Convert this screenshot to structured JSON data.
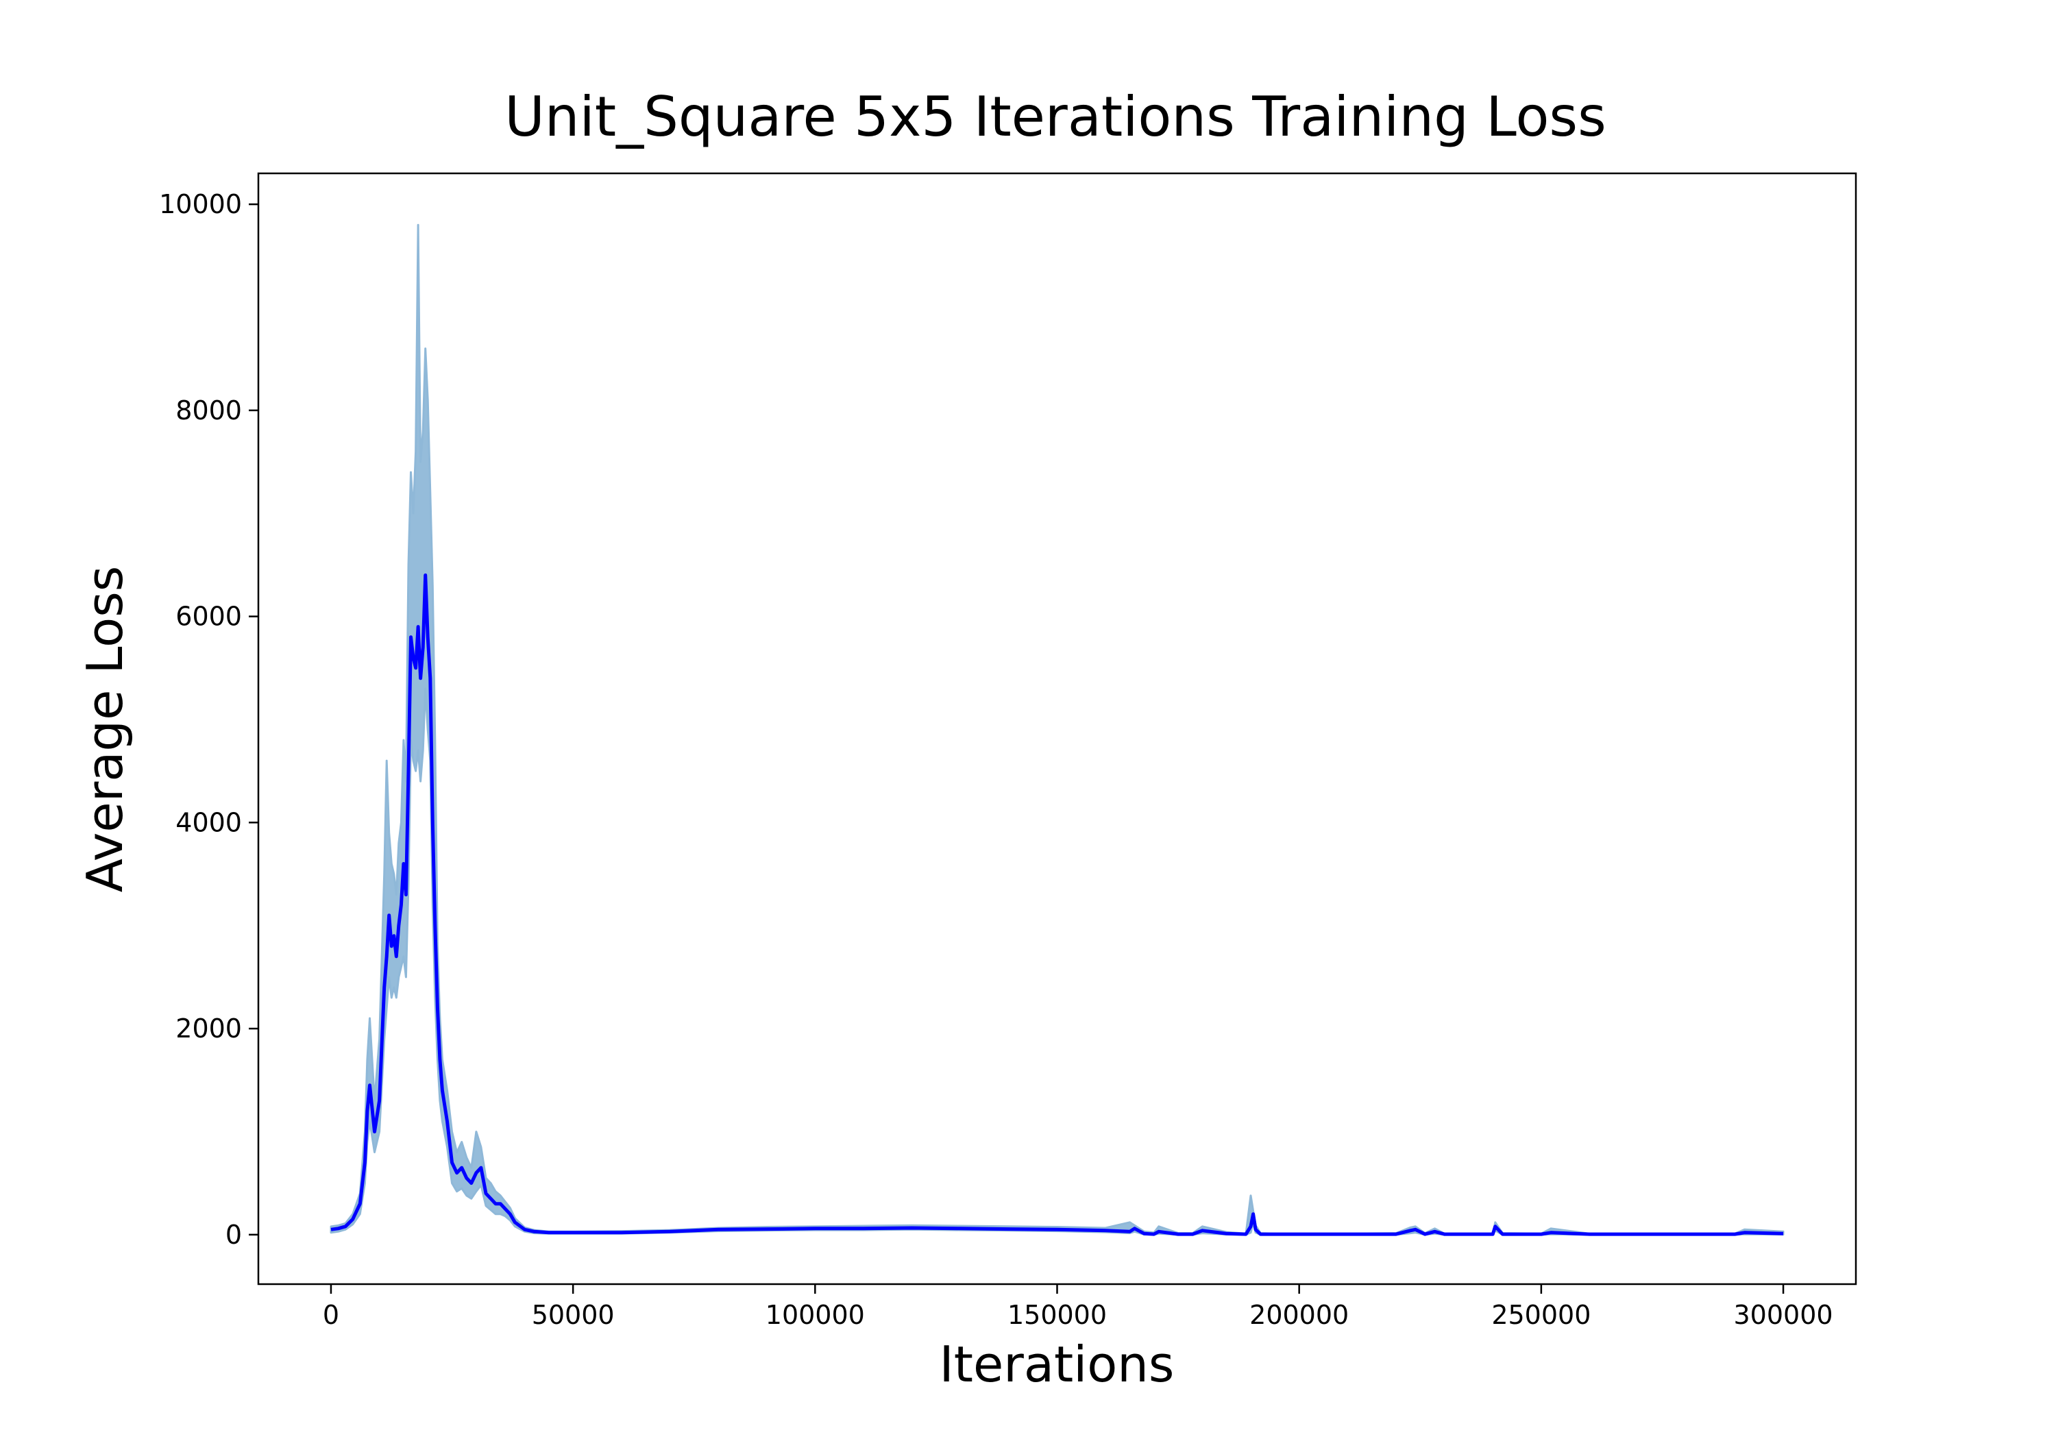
{
  "chart_data": {
    "type": "line",
    "title": "Unit_Square 5x5 Iterations Training Loss",
    "xlabel": "Iterations",
    "ylabel": "Average Loss",
    "xlim": [
      -15000,
      315000
    ],
    "ylim": [
      -480,
      10300
    ],
    "xticks": [
      0,
      50000,
      100000,
      150000,
      200000,
      250000,
      300000
    ],
    "xtick_labels": [
      "0",
      "50000",
      "100000",
      "150000",
      "200000",
      "250000",
      "300000"
    ],
    "yticks": [
      0,
      2000,
      4000,
      6000,
      8000,
      10000
    ],
    "ytick_labels": [
      "0",
      "2000",
      "4000",
      "6000",
      "8000",
      "10000"
    ],
    "grid": false,
    "colors": {
      "mean_line": "#0000ff",
      "band": "#8fb8d8",
      "axes": "#000000"
    },
    "series": [
      {
        "x": [
          0,
          1500,
          3000,
          4500,
          6000,
          7000,
          7500,
          8000,
          9000,
          10000,
          11000,
          11500,
          12000,
          12500,
          13000,
          13500,
          14000,
          14500,
          15000,
          15500,
          16000,
          16500,
          17000,
          17500,
          18000,
          18500,
          19000,
          19500,
          20000,
          20500,
          21000,
          21500,
          22000,
          22500,
          23000,
          24000,
          25000,
          26000,
          27000,
          28000,
          29000,
          30000,
          31000,
          32000,
          33000,
          34000,
          35000,
          36000,
          37000,
          38000,
          40000,
          42000,
          45000,
          50000,
          60000,
          70000,
          80000,
          90000,
          100000,
          110000,
          120000,
          130000,
          140000,
          150000,
          160000,
          165000,
          166000,
          168000,
          170000,
          171000,
          175000,
          178000,
          180000,
          185000,
          189000,
          190000,
          190500,
          191000,
          192000,
          195000,
          200000,
          210000,
          220000,
          223000,
          224000,
          226000,
          228000,
          230000,
          240000,
          240500,
          242000,
          250000,
          252000,
          260000,
          270000,
          280000,
          290000,
          292000,
          300000
        ],
        "values": [
          50,
          60,
          80,
          150,
          300,
          700,
          1200,
          1450,
          1000,
          1300,
          2400,
          2700,
          3100,
          2800,
          2900,
          2700,
          3000,
          3200,
          3600,
          3300,
          4500,
          5800,
          5600,
          5500,
          5900,
          5400,
          5700,
          6400,
          5800,
          5400,
          4000,
          3000,
          2200,
          1700,
          1400,
          1100,
          700,
          600,
          650,
          550,
          500,
          600,
          650,
          400,
          350,
          300,
          300,
          250,
          200,
          120,
          50,
          30,
          20,
          20,
          20,
          30,
          50,
          55,
          60,
          60,
          65,
          60,
          55,
          50,
          40,
          30,
          60,
          10,
          5,
          30,
          5,
          5,
          40,
          10,
          5,
          80,
          200,
          50,
          5,
          5,
          5,
          5,
          5,
          40,
          50,
          5,
          30,
          5,
          5,
          80,
          5,
          5,
          20,
          5,
          5,
          5,
          5,
          20,
          10
        ],
        "band_upper": [
          80,
          90,
          110,
          200,
          400,
          1000,
          1700,
          2100,
          1300,
          1900,
          3500,
          4600,
          3900,
          3600,
          3500,
          3300,
          3800,
          4000,
          4800,
          4400,
          6500,
          7400,
          7000,
          7600,
          9800,
          7500,
          7800,
          8600,
          8100,
          7200,
          6300,
          4800,
          2800,
          2100,
          1700,
          1400,
          1000,
          800,
          900,
          750,
          650,
          1000,
          850,
          550,
          500,
          420,
          380,
          320,
          260,
          160,
          70,
          45,
          30,
          30,
          35,
          45,
          65,
          75,
          80,
          85,
          90,
          85,
          80,
          75,
          65,
          120,
          90,
          30,
          20,
          80,
          15,
          15,
          80,
          25,
          10,
          380,
          230,
          90,
          15,
          10,
          10,
          10,
          15,
          70,
          80,
          15,
          60,
          10,
          10,
          120,
          15,
          10,
          60,
          10,
          10,
          10,
          10,
          50,
          30
        ],
        "band_lower": [
          20,
          30,
          50,
          100,
          200,
          500,
          900,
          1100,
          800,
          1000,
          1900,
          2200,
          2500,
          2300,
          2400,
          2300,
          2500,
          2600,
          2700,
          2500,
          3400,
          4800,
          4600,
          4500,
          4700,
          4400,
          4700,
          5300,
          4900,
          4600,
          3200,
          2300,
          1700,
          1300,
          1100,
          850,
          500,
          420,
          450,
          380,
          350,
          420,
          480,
          280,
          240,
          200,
          200,
          180,
          140,
          80,
          30,
          15,
          10,
          10,
          10,
          20,
          35,
          40,
          45,
          45,
          50,
          45,
          40,
          35,
          25,
          15,
          30,
          2,
          0,
          10,
          0,
          0,
          15,
          2,
          0,
          20,
          120,
          20,
          0,
          0,
          0,
          0,
          0,
          15,
          20,
          0,
          10,
          0,
          0,
          40,
          0,
          0,
          5,
          0,
          0,
          0,
          0,
          5,
          2
        ]
      }
    ]
  }
}
